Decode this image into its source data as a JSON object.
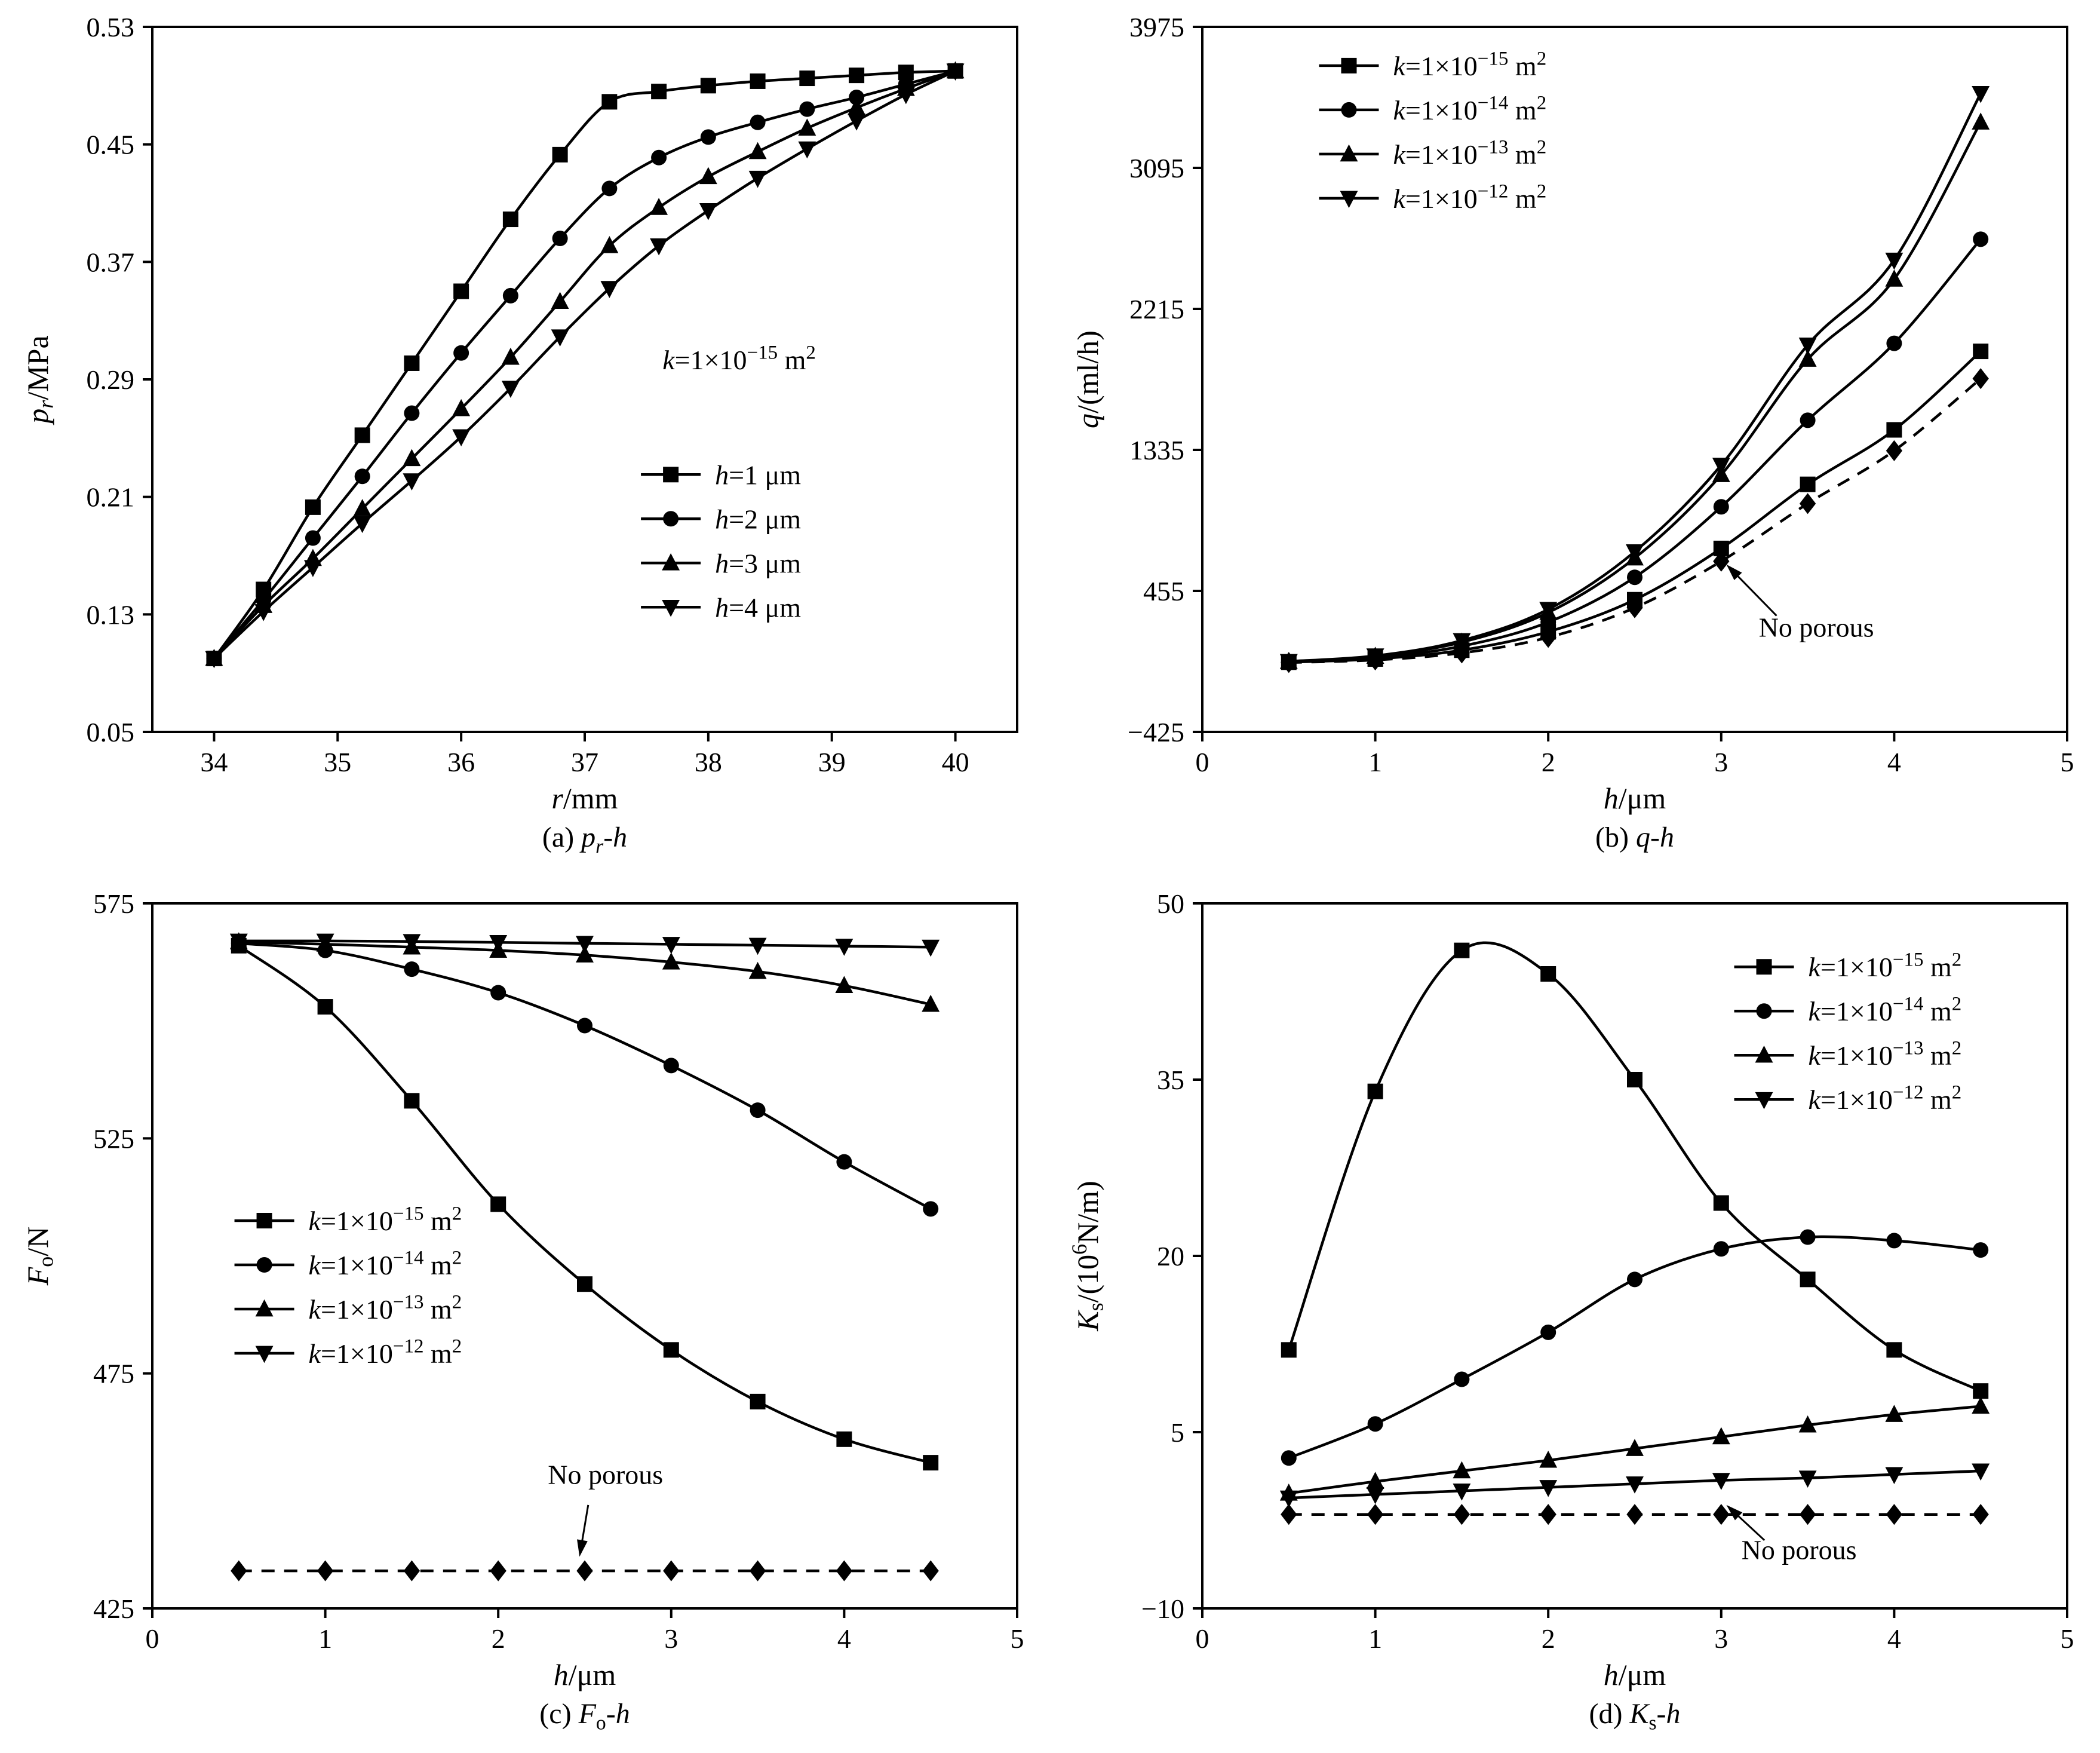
{
  "page": {
    "background": "#ffffff",
    "foreground": "#000000"
  },
  "chart_data": [
    {
      "type": "line",
      "caption": "(a) $p_{r}$-$h$",
      "xlabel": "$r$/mm",
      "ylabel": "$p_{r}$/MPa",
      "xlim": [
        33.5,
        40.5
      ],
      "ylim": [
        0.05,
        0.53
      ],
      "xticks": [
        34,
        35,
        36,
        37,
        38,
        39,
        40
      ],
      "xtick_labels": [
        "34",
        "35",
        "36",
        "37",
        "38",
        "39",
        "40"
      ],
      "yticks": [
        0.05,
        0.13,
        0.21,
        0.29,
        0.37,
        0.45,
        0.53
      ],
      "ytick_labels": [
        "0.05",
        "0.13",
        "0.21",
        "0.29",
        "0.37",
        "0.45",
        "0.53"
      ],
      "legend": {
        "fx": 0.565,
        "fy": 0.635
      },
      "annotations": [
        {
          "text": "$k$=1×10^{−15} m^{2}",
          "x": 38.25,
          "y": 0.297
        }
      ],
      "series": [
        {
          "name": "$h$=1 μm",
          "marker": "square",
          "dash": false,
          "x": [
            34.0,
            34.4,
            34.8,
            35.2,
            35.6,
            36.0,
            36.4,
            36.8,
            37.2,
            37.6,
            38.0,
            38.4,
            38.8,
            39.2,
            39.6,
            40.0
          ],
          "y": [
            0.1,
            0.147,
            0.203,
            0.252,
            0.301,
            0.35,
            0.399,
            0.443,
            0.479,
            0.486,
            0.49,
            0.493,
            0.495,
            0.497,
            0.499,
            0.5
          ]
        },
        {
          "name": "$h$=2 μm",
          "marker": "circle",
          "dash": false,
          "x": [
            34.0,
            34.4,
            34.8,
            35.2,
            35.6,
            36.0,
            36.4,
            36.8,
            37.2,
            37.6,
            38.0,
            38.4,
            38.8,
            39.2,
            39.6,
            40.0
          ],
          "y": [
            0.1,
            0.14,
            0.182,
            0.224,
            0.267,
            0.308,
            0.347,
            0.386,
            0.42,
            0.441,
            0.455,
            0.465,
            0.474,
            0.482,
            0.491,
            0.5
          ]
        },
        {
          "name": "$h$=3 μm",
          "marker": "triangle-up",
          "dash": false,
          "x": [
            34.0,
            34.4,
            34.8,
            35.2,
            35.6,
            36.0,
            36.4,
            36.8,
            37.2,
            37.6,
            38.0,
            38.4,
            38.8,
            39.2,
            39.6,
            40.0
          ],
          "y": [
            0.1,
            0.136,
            0.168,
            0.202,
            0.236,
            0.27,
            0.305,
            0.343,
            0.381,
            0.407,
            0.428,
            0.445,
            0.461,
            0.475,
            0.488,
            0.5
          ]
        },
        {
          "name": "$h$=4 μm",
          "marker": "triangle-down",
          "dash": false,
          "x": [
            34.0,
            34.4,
            34.8,
            35.2,
            35.6,
            36.0,
            36.4,
            36.8,
            37.2,
            37.6,
            38.0,
            38.4,
            38.8,
            39.2,
            39.6,
            40.0
          ],
          "y": [
            0.1,
            0.132,
            0.162,
            0.192,
            0.221,
            0.251,
            0.284,
            0.319,
            0.352,
            0.381,
            0.405,
            0.427,
            0.447,
            0.466,
            0.484,
            0.5
          ]
        }
      ]
    },
    {
      "type": "line",
      "caption": "(b) $q$-$h$",
      "xlabel": "$h$/μm",
      "ylabel": "$q$/(ml/h)",
      "xlim": [
        0,
        5
      ],
      "ylim": [
        -425,
        3975
      ],
      "xticks": [
        0,
        1,
        2,
        3,
        4,
        5
      ],
      "xtick_labels": [
        "0",
        "1",
        "2",
        "3",
        "4",
        "5"
      ],
      "yticks": [
        -425,
        455,
        1335,
        2215,
        3095,
        3975
      ],
      "ytick_labels": [
        "−425",
        "455",
        "1335",
        "2215",
        "3095",
        "3975"
      ],
      "legend": {
        "fx": 0.135,
        "fy": 0.055
      },
      "annotations": [
        {
          "text": "No porous",
          "x": 3.55,
          "y": 170,
          "arrow": {
            "x1": 3.32,
            "y1": 300,
            "x2": 3.03,
            "y2": 620
          }
        }
      ],
      "series": [
        {
          "name": "$k$=1×10^{−15} m^{2}",
          "marker": "square",
          "dash": false,
          "x": [
            0.5,
            1,
            1.5,
            2,
            2.5,
            3,
            3.5,
            4,
            4.5
          ],
          "y": [
            10,
            30,
            85,
            200,
            400,
            720,
            1120,
            1460,
            1950
          ]
        },
        {
          "name": "$k$=1×10^{−14} m^{2}",
          "marker": "circle",
          "dash": false,
          "x": [
            0.5,
            1,
            1.5,
            2,
            2.5,
            3,
            3.5,
            4,
            4.5
          ],
          "y": [
            12,
            38,
            110,
            260,
            540,
            980,
            1520,
            2000,
            2650
          ]
        },
        {
          "name": "$k$=1×10^{−13} m^{2}",
          "marker": "triangle-up",
          "dash": false,
          "x": [
            0.5,
            1,
            1.5,
            2,
            2.5,
            3,
            3.5,
            4,
            4.5
          ],
          "y": [
            14,
            46,
            135,
            320,
            660,
            1180,
            1900,
            2400,
            3380
          ]
        },
        {
          "name": "$k$=1×10^{−12} m^{2}",
          "marker": "triangle-down",
          "dash": false,
          "x": [
            0.5,
            1,
            1.5,
            2,
            2.5,
            3,
            3.5,
            4,
            4.5
          ],
          "y": [
            15,
            50,
            145,
            340,
            700,
            1240,
            1990,
            2520,
            3560
          ]
        },
        {
          "name": "No porous",
          "marker": "diamond",
          "dash": true,
          "in_legend": false,
          "x": [
            0.5,
            1,
            1.5,
            2,
            2.5,
            3,
            3.5,
            4,
            4.5
          ],
          "y": [
            8,
            24,
            68,
            165,
            350,
            640,
            1000,
            1330,
            1780
          ]
        }
      ]
    },
    {
      "type": "line",
      "caption": "(c) $F$_{o}-$h$",
      "xlabel": "$h$/μm",
      "ylabel": "$F$_{o}/N",
      "xlim": [
        0,
        5
      ],
      "ylim": [
        425,
        575
      ],
      "xticks": [
        0,
        1,
        2,
        3,
        4,
        5
      ],
      "xtick_labels": [
        "0",
        "1",
        "2",
        "3",
        "4",
        "5"
      ],
      "yticks": [
        425,
        475,
        525,
        575
      ],
      "ytick_labels": [
        "425",
        "475",
        "525",
        "575"
      ],
      "legend": {
        "fx": 0.095,
        "fy": 0.45
      },
      "annotations": [
        {
          "text": "No porous",
          "x": 2.62,
          "y": 451.5,
          "arrow": {
            "x1": 2.52,
            "y1": 447,
            "x2": 2.47,
            "y2": 436
          }
        }
      ],
      "series": [
        {
          "name": "$k$=1×10^{−15} m^{2}",
          "marker": "square",
          "dash": false,
          "x": [
            0.5,
            1,
            1.5,
            2,
            2.5,
            3,
            3.5,
            4,
            4.5
          ],
          "y": [
            566,
            553,
            533,
            511,
            494,
            480,
            469,
            461,
            456
          ]
        },
        {
          "name": "$k$=1×10^{−14} m^{2}",
          "marker": "circle",
          "dash": false,
          "x": [
            0.5,
            1,
            1.5,
            2,
            2.5,
            3,
            3.5,
            4,
            4.5
          ],
          "y": [
            566.5,
            565,
            561,
            556,
            549,
            540.5,
            531,
            520,
            510
          ]
        },
        {
          "name": "$k$=1×10^{−13} m^{2}",
          "marker": "triangle-up",
          "dash": false,
          "x": [
            0.5,
            1,
            1.5,
            2,
            2.5,
            3,
            3.5,
            4,
            4.5
          ],
          "y": [
            566.8,
            566.3,
            565.7,
            565,
            564,
            562.5,
            560.5,
            557.5,
            553.5
          ]
        },
        {
          "name": "$k$=1×10^{−12} m^{2}",
          "marker": "triangle-down",
          "dash": false,
          "x": [
            0.5,
            1,
            1.5,
            2,
            2.5,
            3,
            3.5,
            4,
            4.5
          ],
          "y": [
            567,
            567,
            566.9,
            566.7,
            566.5,
            566.3,
            566.1,
            565.9,
            565.7
          ]
        },
        {
          "name": "No porous",
          "marker": "diamond",
          "dash": true,
          "in_legend": false,
          "x": [
            0.5,
            1,
            1.5,
            2,
            2.5,
            3,
            3.5,
            4,
            4.5
          ],
          "y": [
            433,
            433,
            433,
            433,
            433,
            433,
            433,
            433,
            433
          ]
        }
      ]
    },
    {
      "type": "line",
      "caption": "(d) $K$_{s}-$h$",
      "xlabel": "$h$/μm",
      "ylabel": "$K$_{s}/(10^{6}N/m)",
      "xlim": [
        0,
        5
      ],
      "ylim": [
        -10,
        50
      ],
      "xticks": [
        0,
        1,
        2,
        3,
        4,
        5
      ],
      "xtick_labels": [
        "0",
        "1",
        "2",
        "3",
        "4",
        "5"
      ],
      "yticks": [
        -10,
        5,
        20,
        35,
        50
      ],
      "ytick_labels": [
        "−10",
        "5",
        "20",
        "35",
        "50"
      ],
      "legend": {
        "fx": 0.615,
        "fy": 0.09
      },
      "annotations": [
        {
          "text": "No porous",
          "x": 3.45,
          "y": -5.8,
          "arrow": {
            "x1": 3.25,
            "y1": -4.2,
            "x2": 3.03,
            "y2": -1.2
          }
        }
      ],
      "series": [
        {
          "name": "$k$=1×10^{−15} m^{2}",
          "marker": "square",
          "dash": false,
          "x": [
            0.5,
            1,
            1.5,
            2,
            2.5,
            3,
            3.5,
            4,
            4.5
          ],
          "y": [
            12,
            34,
            46,
            44,
            35,
            24.5,
            18,
            12,
            8.5
          ]
        },
        {
          "name": "$k$=1×10^{−14} m^{2}",
          "marker": "circle",
          "dash": false,
          "x": [
            0.5,
            1,
            1.5,
            2,
            2.5,
            3,
            3.5,
            4,
            4.5
          ],
          "y": [
            2.8,
            5.7,
            9.5,
            13.5,
            18,
            20.6,
            21.6,
            21.3,
            20.5
          ]
        },
        {
          "name": "$k$=1×10^{−13} m^{2}",
          "marker": "triangle-up",
          "dash": false,
          "x": [
            0.5,
            1,
            1.5,
            2,
            2.5,
            3,
            3.5,
            4,
            4.5
          ],
          "y": [
            -0.2,
            0.8,
            1.7,
            2.6,
            3.6,
            4.6,
            5.6,
            6.5,
            7.2
          ]
        },
        {
          "name": "$k$=1×10^{−12} m^{2}",
          "marker": "triangle-down",
          "dash": false,
          "x": [
            0.5,
            1,
            1.5,
            2,
            2.5,
            3,
            3.5,
            4,
            4.5
          ],
          "y": [
            -0.6,
            -0.3,
            0,
            0.3,
            0.6,
            0.9,
            1.1,
            1.4,
            1.7
          ]
        },
        {
          "name": "No porous",
          "marker": "diamond",
          "dash": true,
          "in_legend": false,
          "x": [
            0.5,
            1,
            1.5,
            2,
            2.5,
            3,
            3.5,
            4,
            4.5
          ],
          "y": [
            -2,
            -2,
            -2,
            -2,
            -2,
            -2,
            -2,
            -2,
            -2
          ]
        }
      ]
    }
  ]
}
